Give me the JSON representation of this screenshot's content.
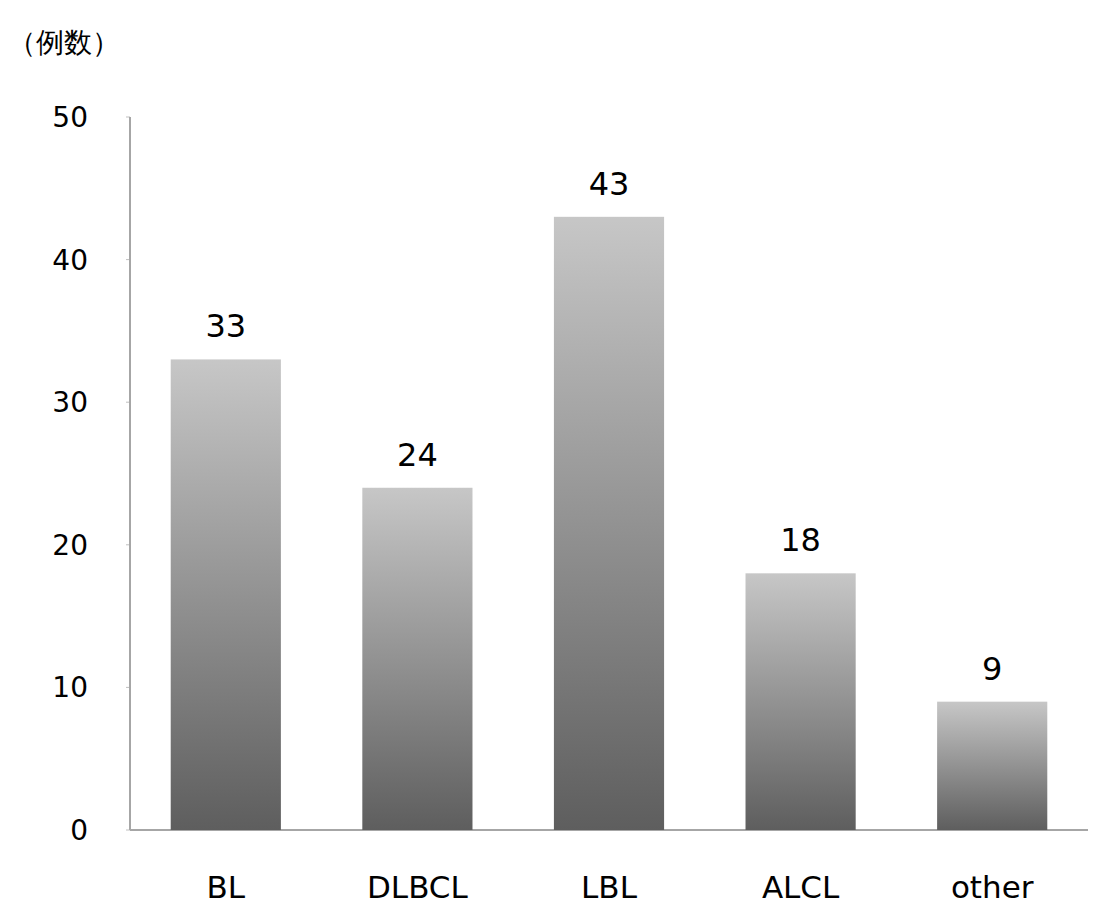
{
  "chart_data": {
    "type": "bar",
    "y_label": "（例数）",
    "categories": [
      "BL",
      "DLBCL",
      "LBL",
      "ALCL",
      "other"
    ],
    "values": [
      33,
      24,
      43,
      18,
      9
    ],
    "color": "#5e5e5e",
    "ylim": [
      0,
      50
    ],
    "yticks": [
      0,
      10,
      20,
      30,
      40,
      50
    ],
    "grid": false,
    "data_labels": true
  }
}
